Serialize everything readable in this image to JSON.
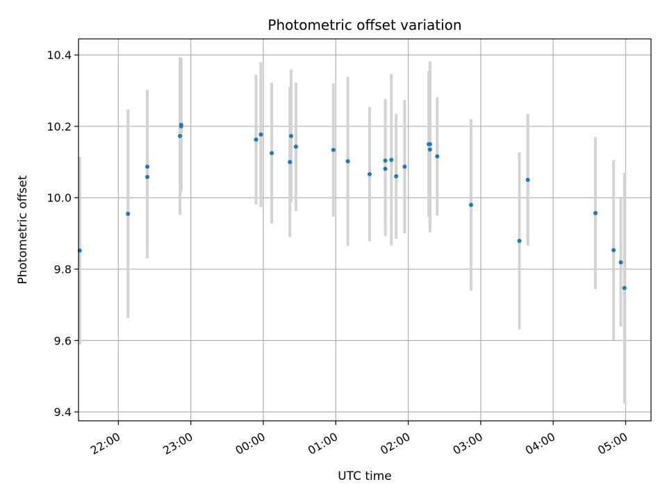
{
  "chart_data": {
    "type": "scatter",
    "title": "Photometric offset variation",
    "xlabel": "UTC time",
    "ylabel": "Photometric offset",
    "x_unit": "UTC time of night (21:00 to 05:00, crossing midnight)",
    "xlim": [
      "21:27",
      "05:21"
    ],
    "ylim": [
      9.375,
      10.445
    ],
    "grid": true,
    "legend": "none",
    "x_ticks": [
      "22:00",
      "23:00",
      "00:00",
      "01:00",
      "02:00",
      "03:00",
      "04:00",
      "05:00"
    ],
    "y_ticks": [
      9.4,
      9.6,
      9.8,
      10.0,
      10.2,
      10.4
    ],
    "y_tick_labels": [
      "9.4",
      "9.6",
      "9.8",
      "10.0",
      "10.2",
      "10.4"
    ],
    "colors": {
      "point": "#1f77b4",
      "errorbar": "#d3d3d3",
      "grid": "#b0b0b0"
    },
    "points": [
      {
        "x": "21:28",
        "y": 9.852,
        "err": 0.263
      },
      {
        "x": "22:08",
        "y": 9.955,
        "err": 0.292
      },
      {
        "x": "22:24",
        "y": 10.058,
        "err": 0.228
      },
      {
        "x": "22:24",
        "y": 10.087,
        "err": 0.215
      },
      {
        "x": "22:51",
        "y": 10.173,
        "err": 0.221
      },
      {
        "x": "22:52",
        "y": 10.204,
        "err": 0.188
      },
      {
        "x": "22:52",
        "y": 10.2,
        "err": 0.168
      },
      {
        "x": "23:54",
        "y": 10.163,
        "err": 0.182
      },
      {
        "x": "23:58",
        "y": 10.177,
        "err": 0.203
      },
      {
        "x": "00:07",
        "y": 10.125,
        "err": 0.197
      },
      {
        "x": "00:22",
        "y": 10.1,
        "err": 0.21
      },
      {
        "x": "00:23",
        "y": 10.173,
        "err": 0.186
      },
      {
        "x": "00:27",
        "y": 10.143,
        "err": 0.18
      },
      {
        "x": "00:58",
        "y": 10.134,
        "err": 0.187
      },
      {
        "x": "01:10",
        "y": 10.102,
        "err": 0.237
      },
      {
        "x": "01:28",
        "y": 10.066,
        "err": 0.188
      },
      {
        "x": "01:41",
        "y": 10.081,
        "err": 0.188
      },
      {
        "x": "01:41",
        "y": 10.104,
        "err": 0.173
      },
      {
        "x": "01:46",
        "y": 10.106,
        "err": 0.24
      },
      {
        "x": "01:50",
        "y": 10.06,
        "err": 0.175
      },
      {
        "x": "01:57",
        "y": 10.087,
        "err": 0.187
      },
      {
        "x": "02:17",
        "y": 10.15,
        "err": 0.205
      },
      {
        "x": "02:18",
        "y": 10.15,
        "err": 0.232
      },
      {
        "x": "02:18",
        "y": 10.135,
        "err": 0.232
      },
      {
        "x": "02:24",
        "y": 10.116,
        "err": 0.166
      },
      {
        "x": "02:52",
        "y": 9.98,
        "err": 0.24
      },
      {
        "x": "03:32",
        "y": 9.879,
        "err": 0.248
      },
      {
        "x": "03:39",
        "y": 10.05,
        "err": 0.185
      },
      {
        "x": "04:35",
        "y": 9.957,
        "err": 0.213
      },
      {
        "x": "04:50",
        "y": 9.853,
        "err": 0.252
      },
      {
        "x": "04:56",
        "y": 9.819,
        "err": 0.18
      },
      {
        "x": "04:59",
        "y": 9.747,
        "err": 0.323
      }
    ]
  }
}
